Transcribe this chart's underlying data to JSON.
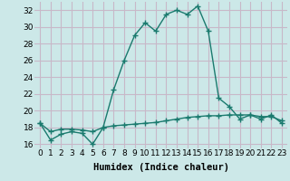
{
  "xlabel": "Humidex (Indice chaleur)",
  "x": [
    0,
    1,
    2,
    3,
    4,
    5,
    6,
    7,
    8,
    9,
    10,
    11,
    12,
    13,
    14,
    15,
    16,
    17,
    18,
    19,
    20,
    21,
    22,
    23
  ],
  "line1": [
    18.5,
    16.5,
    17.2,
    17.5,
    17.3,
    16.0,
    18.0,
    22.5,
    26.0,
    29.0,
    30.5,
    29.5,
    31.5,
    32.0,
    31.5,
    32.5,
    29.5,
    21.5,
    20.5,
    19.0,
    19.5,
    19.0,
    19.5,
    18.5
  ],
  "line2": [
    18.5,
    17.5,
    17.8,
    17.8,
    17.7,
    17.5,
    18.0,
    18.2,
    18.3,
    18.4,
    18.5,
    18.6,
    18.8,
    19.0,
    19.2,
    19.3,
    19.4,
    19.4,
    19.5,
    19.5,
    19.5,
    19.3,
    19.3,
    18.8
  ],
  "line_color": "#1a7a6e",
  "bg_color": "#cce8e8",
  "grid_color": "#c8b8c8",
  "ylim": [
    15.5,
    33
  ],
  "xlim": [
    -0.5,
    23.5
  ],
  "yticks": [
    16,
    18,
    20,
    22,
    24,
    26,
    28,
    30,
    32
  ],
  "xticks": [
    0,
    1,
    2,
    3,
    4,
    5,
    6,
    7,
    8,
    9,
    10,
    11,
    12,
    13,
    14,
    15,
    16,
    17,
    18,
    19,
    20,
    21,
    22,
    23
  ],
  "xtick_labels": [
    "0",
    "1",
    "2",
    "3",
    "4",
    "5",
    "6",
    "7",
    "8",
    "9",
    "10",
    "11",
    "12",
    "13",
    "14",
    "15",
    "16",
    "17",
    "18",
    "19",
    "20",
    "21",
    "22",
    "23"
  ],
  "marker": "+",
  "marker_size": 4,
  "linewidth": 1.0,
  "font_size": 6.5,
  "xlabel_font_size": 7.5
}
